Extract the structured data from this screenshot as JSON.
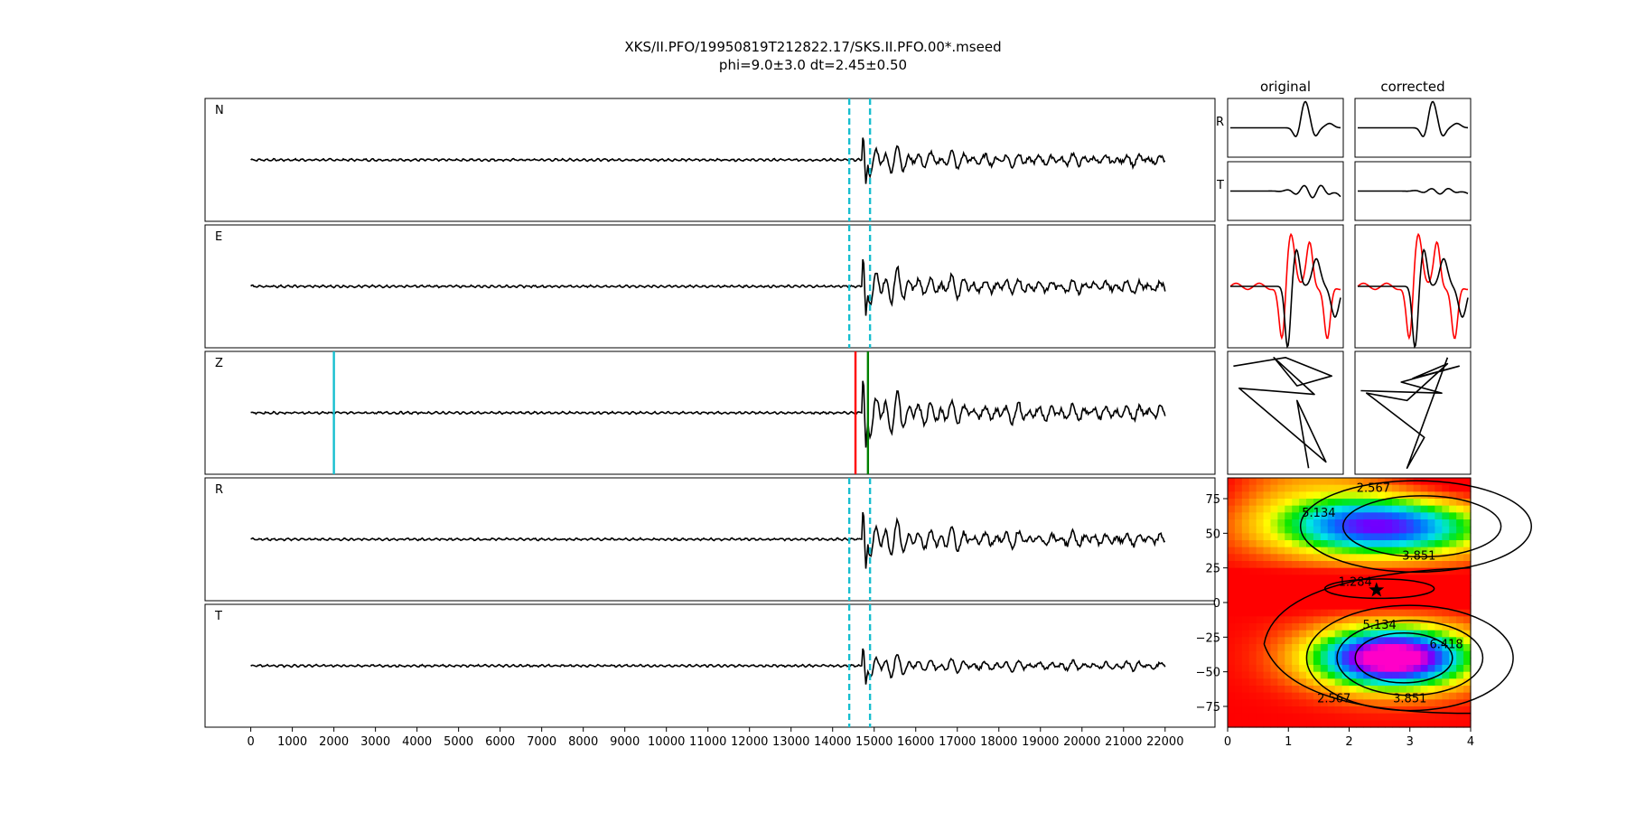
{
  "chart_data": {
    "type": "line",
    "title": "XKS/II.PFO/19950819T212822.17/SKS.II.PFO.00*.mseed",
    "subtitle": "phi=9.0±3.0 dt=2.45±0.50",
    "x_ticks": [
      "0",
      "1000",
      "2000",
      "3000",
      "4000",
      "5000",
      "6000",
      "7000",
      "8000",
      "9000",
      "10000",
      "11000",
      "12000",
      "13000",
      "14000",
      "15000",
      "16000",
      "17000",
      "18000",
      "19000",
      "20000",
      "21000",
      "22000"
    ],
    "xlim": [
      -1100,
      23200
    ],
    "traces": [
      {
        "label": "N",
        "x_end": 22000,
        "onset": 14700,
        "decay": 0.9,
        "markers": [
          {
            "x": 14400,
            "color": "#17becf",
            "style": "dashed"
          },
          {
            "x": 14900,
            "color": "#17becf",
            "style": "dashed"
          }
        ]
      },
      {
        "label": "E",
        "x_end": 22000,
        "onset": 14700,
        "decay": 1.1,
        "markers": [
          {
            "x": 14400,
            "color": "#17becf",
            "style": "dashed"
          },
          {
            "x": 14900,
            "color": "#17becf",
            "style": "dashed"
          }
        ]
      },
      {
        "label": "Z",
        "x_end": 22000,
        "onset": 14700,
        "decay": 1.3,
        "markers": [
          {
            "x": 2000,
            "color": "#17becf",
            "style": "solid"
          },
          {
            "x": 14550,
            "color": "#ff0000",
            "style": "solid"
          },
          {
            "x": 14850,
            "color": "#008000",
            "style": "solid"
          }
        ]
      },
      {
        "label": "R",
        "x_end": 22000,
        "onset": 14700,
        "decay": 1.1,
        "markers": [
          {
            "x": 14400,
            "color": "#17becf",
            "style": "dashed"
          },
          {
            "x": 14900,
            "color": "#17becf",
            "style": "dashed"
          }
        ]
      },
      {
        "label": "T",
        "x_end": 22000,
        "onset": 14700,
        "decay": 0.7,
        "markers": [
          {
            "x": 14400,
            "color": "#17becf",
            "style": "dashed"
          },
          {
            "x": 14900,
            "color": "#17becf",
            "style": "dashed"
          }
        ]
      }
    ],
    "panels": {
      "col_titles": [
        "original",
        "corrected"
      ],
      "row_labels": [
        "R",
        "T"
      ]
    },
    "grid_search": {
      "x_ticks": [
        "0",
        "1",
        "2",
        "3",
        "4"
      ],
      "y_ticks": [
        "75",
        "50",
        "25",
        "0",
        "−25",
        "−50",
        "−75"
      ],
      "xlim": [
        0,
        4
      ],
      "ylim": [
        -90,
        90
      ],
      "best": {
        "dt": 2.45,
        "phi": 9.0
      },
      "contour_labels": [
        {
          "text": "2.567",
          "dt": 2.4,
          "phi": 82
        },
        {
          "text": "5.134",
          "dt": 1.5,
          "phi": 64
        },
        {
          "text": "3.851",
          "dt": 3.15,
          "phi": 33
        },
        {
          "text": "1.284",
          "dt": 2.1,
          "phi": 14
        },
        {
          "text": "5.134",
          "dt": 2.5,
          "phi": -17
        },
        {
          "text": "6.418",
          "dt": 3.6,
          "phi": -31
        },
        {
          "text": "2.567",
          "dt": 1.75,
          "phi": -70
        },
        {
          "text": "3.851",
          "dt": 3.0,
          "phi": -70
        }
      ]
    }
  }
}
